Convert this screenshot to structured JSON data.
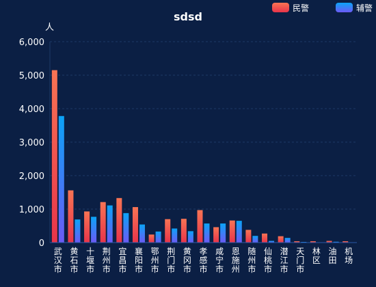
{
  "chart_data": {
    "type": "bar",
    "title": "sdsd",
    "ylabel": "人",
    "ylim": [
      0,
      6000
    ],
    "yticks": [
      0,
      1000,
      2000,
      3000,
      4000,
      5000,
      6000
    ],
    "ytick_labels": [
      "0",
      "1,000",
      "2,000",
      "3,000",
      "4,000",
      "5,000",
      "6,000"
    ],
    "grid": true,
    "legend_position": "top-right",
    "categories": [
      "武汉市",
      "黄石市",
      "十堰市",
      "荆州市",
      "宜昌市",
      "襄阳市",
      "鄂州市",
      "荆门市",
      "黄冈市",
      "孝感市",
      "咸宁市",
      "恩施州",
      "随州市",
      "仙桃市",
      "潜江市",
      "天门市",
      "林区",
      "油田",
      "机场"
    ],
    "series": [
      {
        "name": "民警",
        "colors": [
          "#f87454",
          "#e8344a"
        ],
        "values": [
          5150,
          1560,
          930,
          1210,
          1330,
          1060,
          240,
          700,
          710,
          970,
          460,
          660,
          380,
          270,
          190,
          40,
          40,
          50,
          40
        ]
      },
      {
        "name": "辅警",
        "colors": [
          "#0ba3f7",
          "#6c5af5"
        ],
        "values": [
          3780,
          690,
          770,
          1110,
          880,
          540,
          330,
          420,
          340,
          570,
          570,
          650,
          200,
          50,
          140,
          20,
          10,
          25,
          10
        ]
      }
    ]
  }
}
